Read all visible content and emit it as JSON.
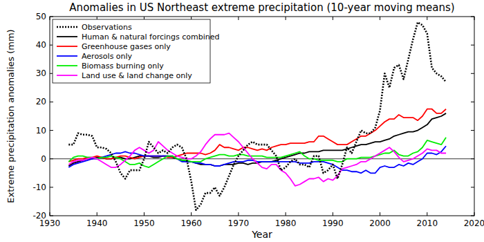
{
  "chart_data": {
    "type": "line",
    "title": "Anomalies in US Northeast extreme precipitation (10-year moving means)",
    "x_label": "Year",
    "y_label": "Extreme precipitation anomalies (mm)",
    "xlim": [
      1930,
      2020
    ],
    "xticks": [
      1930,
      1940,
      1950,
      1960,
      1970,
      1980,
      1990,
      2000,
      2010,
      2020
    ],
    "ylim": [
      -20,
      50
    ],
    "yticks": [
      -20,
      -10,
      0,
      10,
      20,
      30,
      40,
      50
    ],
    "grid": false,
    "legend": "upper left",
    "x": [
      1934,
      1935,
      1936,
      1937,
      1938,
      1939,
      1940,
      1941,
      1942,
      1943,
      1944,
      1945,
      1946,
      1947,
      1948,
      1949,
      1950,
      1951,
      1952,
      1953,
      1954,
      1955,
      1956,
      1957,
      1958,
      1959,
      1960,
      1961,
      1962,
      1963,
      1964,
      1965,
      1966,
      1967,
      1968,
      1969,
      1970,
      1971,
      1972,
      1973,
      1974,
      1975,
      1976,
      1977,
      1978,
      1979,
      1980,
      1981,
      1982,
      1983,
      1984,
      1985,
      1986,
      1987,
      1988,
      1989,
      1990,
      1991,
      1992,
      1993,
      1994,
      1995,
      1996,
      1997,
      1998,
      1999,
      2000,
      2001,
      2002,
      2003,
      2004,
      2005,
      2006,
      2007,
      2008,
      2009,
      2010,
      2011,
      2012,
      2013,
      2014
    ],
    "series": [
      {
        "name": "Observations",
        "color": "#000000",
        "line_style": "dotted",
        "values": [
          5,
          5,
          9,
          8.5,
          8.5,
          8,
          4,
          4,
          3.5,
          2,
          -1,
          -5,
          -7,
          -4,
          -4,
          -4,
          0,
          6,
          4,
          2,
          3,
          2,
          4,
          5,
          4,
          0,
          -8,
          -18,
          -16,
          -12,
          -12,
          -10,
          -13,
          -10,
          -6,
          -2,
          1,
          3,
          5,
          6,
          5,
          5,
          5,
          3,
          1,
          -4,
          -3,
          -1,
          0,
          -2,
          -2,
          -3,
          1,
          1,
          -5,
          -4,
          -2,
          -7,
          -2,
          4,
          2,
          6,
          10,
          9,
          9,
          11,
          17,
          30,
          25,
          32,
          33,
          28,
          35,
          42,
          48,
          47,
          44,
          32,
          30,
          29,
          27
        ]
      },
      {
        "name": "Human & natural forcings combined",
        "color": "#000000",
        "line_style": "solid",
        "values": [
          -2.5,
          -1.5,
          -1,
          -0.5,
          0,
          0,
          0.5,
          0.5,
          0,
          0,
          0.5,
          0.5,
          0,
          0,
          0.5,
          1,
          1,
          1,
          0.5,
          0.5,
          1,
          1,
          0.5,
          0,
          -0.5,
          -1,
          -1,
          -1.5,
          -2,
          -2,
          -2,
          -2.5,
          -2.5,
          -2,
          -2,
          -2,
          -1.5,
          -1.5,
          -2,
          -1.5,
          -1.5,
          -1,
          -1,
          -1,
          -0.5,
          0,
          0.5,
          1,
          1.5,
          2,
          2,
          2.5,
          2.5,
          2.5,
          3,
          3,
          3,
          3,
          3,
          3.5,
          4,
          4.5,
          5,
          5,
          5.5,
          6,
          6,
          6.5,
          7,
          8,
          8.5,
          9,
          9.5,
          9.5,
          10,
          11,
          12,
          14,
          14.5,
          15,
          16
        ]
      },
      {
        "name": "Greenhouse gases only",
        "color": "#ff0000",
        "line_style": "solid",
        "values": [
          -1,
          -0.5,
          0,
          0,
          0.5,
          0.5,
          1,
          0.5,
          0,
          0,
          0.5,
          1,
          1,
          0.5,
          0,
          0.5,
          1,
          1,
          1,
          1,
          1,
          0.5,
          0.5,
          1,
          1.5,
          2,
          2,
          2,
          2,
          1.5,
          2,
          3,
          5,
          4,
          4,
          3.5,
          3,
          4,
          4,
          3.5,
          3,
          3.5,
          3,
          4,
          4.5,
          5,
          5,
          5.5,
          5.5,
          5.5,
          5.5,
          6,
          6,
          8,
          8,
          7,
          6,
          5,
          5,
          5,
          6,
          7,
          8,
          8,
          9,
          10,
          11.5,
          13,
          14,
          14,
          15.5,
          14.5,
          14.5,
          14.5,
          13.5,
          15,
          17.5,
          17.5,
          16,
          16,
          17.5
        ]
      },
      {
        "name": "Aerosols only",
        "color": "#0000ff",
        "line_style": "solid",
        "values": [
          -3,
          -2,
          -1.5,
          -1,
          -0.5,
          0,
          0,
          0.5,
          1,
          1.5,
          2,
          2,
          2.5,
          2,
          2,
          1.5,
          1,
          1,
          1,
          1,
          1,
          1,
          1,
          0,
          -1,
          -1,
          -1,
          -1.5,
          -1.5,
          -2,
          -2,
          -2.5,
          -2.5,
          -2,
          -1.5,
          -1,
          -1,
          -1,
          -0.5,
          -0.5,
          -1,
          -1,
          -1,
          -1,
          -1,
          -1,
          -1,
          -1,
          -1,
          -1.5,
          -1.5,
          -1.5,
          -1,
          -1,
          -1,
          -1.5,
          -2,
          -3,
          -4,
          -4,
          -4.5,
          -4.5,
          -5,
          -4,
          -5,
          -5,
          -3,
          -2.5,
          -3,
          -3,
          -2,
          -2.5,
          -1.5,
          -2,
          -1,
          0,
          2,
          2,
          1.5,
          2.5,
          4.5
        ]
      },
      {
        "name": "Biomass burning only",
        "color": "#00ee00",
        "line_style": "solid",
        "values": [
          -1,
          0.5,
          1,
          1,
          0.5,
          0.5,
          0,
          0.5,
          0.5,
          1,
          0.5,
          0,
          -1,
          -2,
          -2,
          -1.5,
          -2.5,
          -3,
          -2,
          -1,
          0,
          1,
          1,
          0,
          -0.5,
          -0.5,
          -1,
          -1,
          -1,
          0,
          0.5,
          1,
          1.5,
          1.5,
          1,
          1,
          1.5,
          1.5,
          1,
          1,
          1,
          1,
          0.5,
          0.5,
          0.5,
          0.5,
          1,
          1.5,
          2,
          2.5,
          1,
          0,
          0,
          -0.5,
          -0.5,
          -0.5,
          -0.5,
          -1,
          -1,
          0,
          0,
          0,
          0.5,
          0.5,
          0.5,
          1,
          1.5,
          2,
          2,
          3,
          1.5,
          1,
          1,
          2,
          2.5,
          4,
          6.5,
          6,
          5.5,
          5,
          7.5
        ]
      },
      {
        "name": "Land use & land change only",
        "color": "#ff00ff",
        "line_style": "solid",
        "values": [
          -2,
          -1,
          -0.5,
          -0.5,
          0,
          0.5,
          0,
          -1,
          -2,
          -3,
          -3,
          -2,
          -0.5,
          1,
          3,
          4,
          3,
          2,
          3,
          6,
          4.5,
          3,
          2,
          1,
          0.5,
          0,
          0,
          1,
          2.5,
          5,
          7,
          8.5,
          8.5,
          8.5,
          9,
          7.5,
          6,
          4,
          2,
          0,
          -1.5,
          -3,
          -3.5,
          -2,
          -2,
          -4,
          -5,
          -7,
          -9.5,
          -9,
          -8,
          -7,
          -7,
          -6.5,
          -8,
          -7,
          -7.5,
          -6,
          -3.5,
          -3,
          -2.5,
          -2,
          -1,
          -1,
          0,
          1,
          2,
          3,
          4,
          2.5,
          0.5,
          -1,
          -0.5,
          0,
          1,
          2,
          3.5,
          3,
          3,
          2,
          2
        ]
      }
    ]
  }
}
